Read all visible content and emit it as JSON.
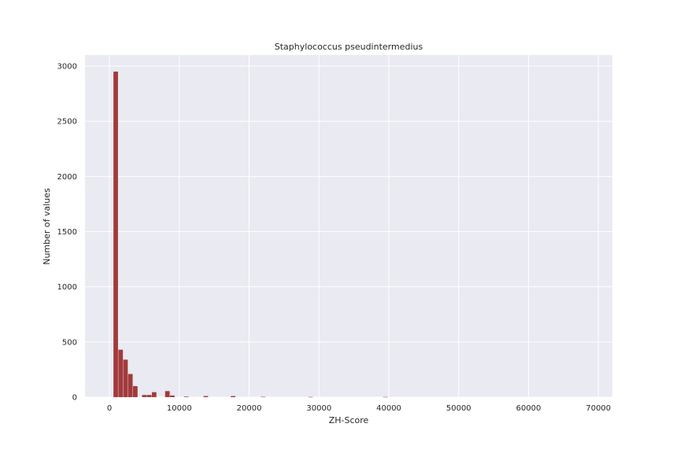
{
  "chart_data": {
    "type": "bar",
    "title": "Staphylococcus pseudintermedius",
    "xlabel": "ZH-Score",
    "ylabel": "Number of values",
    "xlim": [
      -3500,
      72000
    ],
    "ylim": [
      0,
      3100
    ],
    "xticks": [
      0,
      10000,
      20000,
      30000,
      40000,
      50000,
      60000,
      70000
    ],
    "yticks": [
      0,
      500,
      1000,
      1500,
      2000,
      2500,
      3000
    ],
    "grid": true,
    "bar_width": 650,
    "series": [
      {
        "color": "#a33a3a",
        "x": [
          900,
          1600,
          2300,
          3000,
          3700,
          5000,
          5700,
          6400,
          8300,
          9000,
          11000,
          13800,
          17700,
          22000,
          28800,
          39500
        ],
        "values": [
          2950,
          430,
          340,
          210,
          100,
          20,
          20,
          45,
          55,
          15,
          5,
          10,
          10,
          3,
          2,
          2
        ]
      }
    ]
  }
}
